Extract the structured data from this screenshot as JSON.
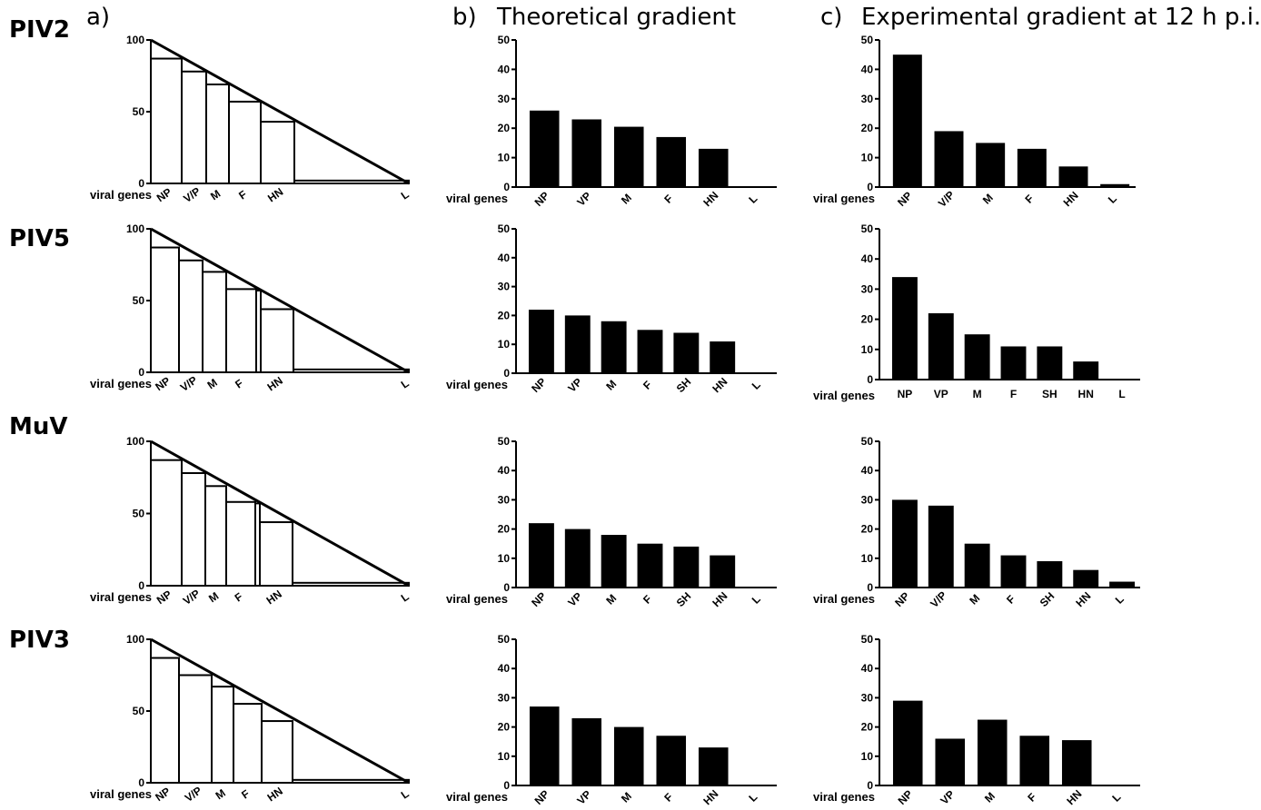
{
  "row_labels": [
    "PIV2",
    "PIV5",
    "MuV",
    "PIV3"
  ],
  "column_labels": {
    "a": "a)",
    "b_letter": "b)",
    "b_title": "Theoretical gradient",
    "c_letter": "c)",
    "c_title": "Experimental gradient at 12 h p.i."
  },
  "colors": {
    "bar": "#000000",
    "background": "#ffffff"
  },
  "chart_data": [
    {
      "id": "PIV2-a",
      "type": "bar",
      "panel": "a",
      "row": "PIV2",
      "xlabel": "viral genes",
      "ylim": [
        0,
        100
      ],
      "yticks": [
        0,
        50,
        100
      ],
      "categories": [
        "NP",
        "V/P",
        "M",
        "F",
        "HN",
        "L"
      ],
      "values": [
        87,
        78,
        69,
        57,
        43,
        2
      ]
    },
    {
      "id": "PIV2-b",
      "type": "bar",
      "panel": "b",
      "row": "PIV2",
      "xlabel": "viral genes",
      "ylim": [
        0,
        50
      ],
      "yticks": [
        0,
        10,
        20,
        30,
        40,
        50
      ],
      "categories": [
        "NP",
        "VP",
        "M",
        "F",
        "HN",
        "L"
      ],
      "values": [
        26,
        23,
        20.5,
        17,
        13,
        0
      ]
    },
    {
      "id": "PIV2-c",
      "type": "bar",
      "panel": "c",
      "row": "PIV2",
      "xlabel": "viral genes",
      "ylim": [
        0,
        50
      ],
      "yticks": [
        0,
        10,
        20,
        30,
        40,
        50
      ],
      "categories": [
        "NP",
        "V/P",
        "M",
        "F",
        "HN",
        "L"
      ],
      "values": [
        45,
        19,
        15,
        13,
        7,
        1
      ]
    },
    {
      "id": "PIV5-a",
      "type": "bar",
      "panel": "a",
      "row": "PIV5",
      "xlabel": "viral genes",
      "ylim": [
        0,
        100
      ],
      "yticks": [
        0,
        50,
        100
      ],
      "categories": [
        "NP",
        "V/P",
        "M",
        "F",
        "",
        "HN",
        "L"
      ],
      "values": [
        87,
        78,
        70,
        58,
        57,
        44,
        2
      ]
    },
    {
      "id": "PIV5-b",
      "type": "bar",
      "panel": "b",
      "row": "PIV5",
      "xlabel": "viral genes",
      "ylim": [
        0,
        50
      ],
      "yticks": [
        0,
        10,
        20,
        30,
        40,
        50
      ],
      "categories": [
        "NP",
        "VP",
        "M",
        "F",
        "SH",
        "HN",
        "L"
      ],
      "values": [
        22,
        20,
        18,
        15,
        14,
        11,
        0
      ]
    },
    {
      "id": "PIV5-c",
      "type": "bar",
      "panel": "c",
      "row": "PIV5",
      "xlabel": "viral genes",
      "ylim": [
        0,
        50
      ],
      "yticks": [
        0,
        10,
        20,
        30,
        40,
        50
      ],
      "categories": [
        "NP",
        "VP",
        "M",
        "F",
        "SH",
        "HN",
        "L"
      ],
      "values": [
        34,
        22,
        15,
        11,
        11,
        6,
        0.3
      ]
    },
    {
      "id": "MuV-a",
      "type": "bar",
      "panel": "a",
      "row": "MuV",
      "xlabel": "viral genes",
      "ylim": [
        0,
        100
      ],
      "yticks": [
        0,
        50,
        100
      ],
      "categories": [
        "NP",
        "V/P",
        "M",
        "F",
        "",
        "HN",
        "L"
      ],
      "values": [
        87,
        78,
        69,
        58,
        57,
        44,
        2
      ]
    },
    {
      "id": "MuV-b",
      "type": "bar",
      "panel": "b",
      "row": "MuV",
      "xlabel": "viral genes",
      "ylim": [
        0,
        50
      ],
      "yticks": [
        0,
        10,
        20,
        30,
        40,
        50
      ],
      "categories": [
        "NP",
        "VP",
        "M",
        "F",
        "SH",
        "HN",
        "L"
      ],
      "values": [
        22,
        20,
        18,
        15,
        14,
        11,
        0.3
      ]
    },
    {
      "id": "MuV-c",
      "type": "bar",
      "panel": "c",
      "row": "MuV",
      "xlabel": "viral genes",
      "ylim": [
        0,
        50
      ],
      "yticks": [
        0,
        10,
        20,
        30,
        40,
        50
      ],
      "categories": [
        "NP",
        "V/P",
        "M",
        "F",
        "SH",
        "HN",
        "L"
      ],
      "values": [
        30,
        28,
        15,
        11,
        9,
        6,
        2
      ]
    },
    {
      "id": "PIV3-a",
      "type": "bar",
      "panel": "a",
      "row": "PIV3",
      "xlabel": "viral genes",
      "ylim": [
        0,
        100
      ],
      "yticks": [
        0,
        50,
        100
      ],
      "categories": [
        "NP",
        "V/P",
        "M",
        "F",
        "HN",
        "L"
      ],
      "values": [
        87,
        75,
        67,
        55,
        43,
        2
      ]
    },
    {
      "id": "PIV3-b",
      "type": "bar",
      "panel": "b",
      "row": "PIV3",
      "xlabel": "viral genes",
      "ylim": [
        0,
        50
      ],
      "yticks": [
        0,
        10,
        20,
        30,
        40,
        50
      ],
      "categories": [
        "NP",
        "VP",
        "M",
        "F",
        "HN",
        "L"
      ],
      "values": [
        27,
        23,
        20,
        17,
        13,
        0.3
      ]
    },
    {
      "id": "PIV3-c",
      "type": "bar",
      "panel": "c",
      "row": "PIV3",
      "xlabel": "viral genes",
      "ylim": [
        0,
        50
      ],
      "yticks": [
        0,
        10,
        20,
        30,
        40,
        50
      ],
      "categories": [
        "NP",
        "VP",
        "M",
        "F",
        "HN",
        "L"
      ],
      "values": [
        29,
        16,
        22.5,
        17,
        15.5,
        0.3
      ]
    }
  ]
}
